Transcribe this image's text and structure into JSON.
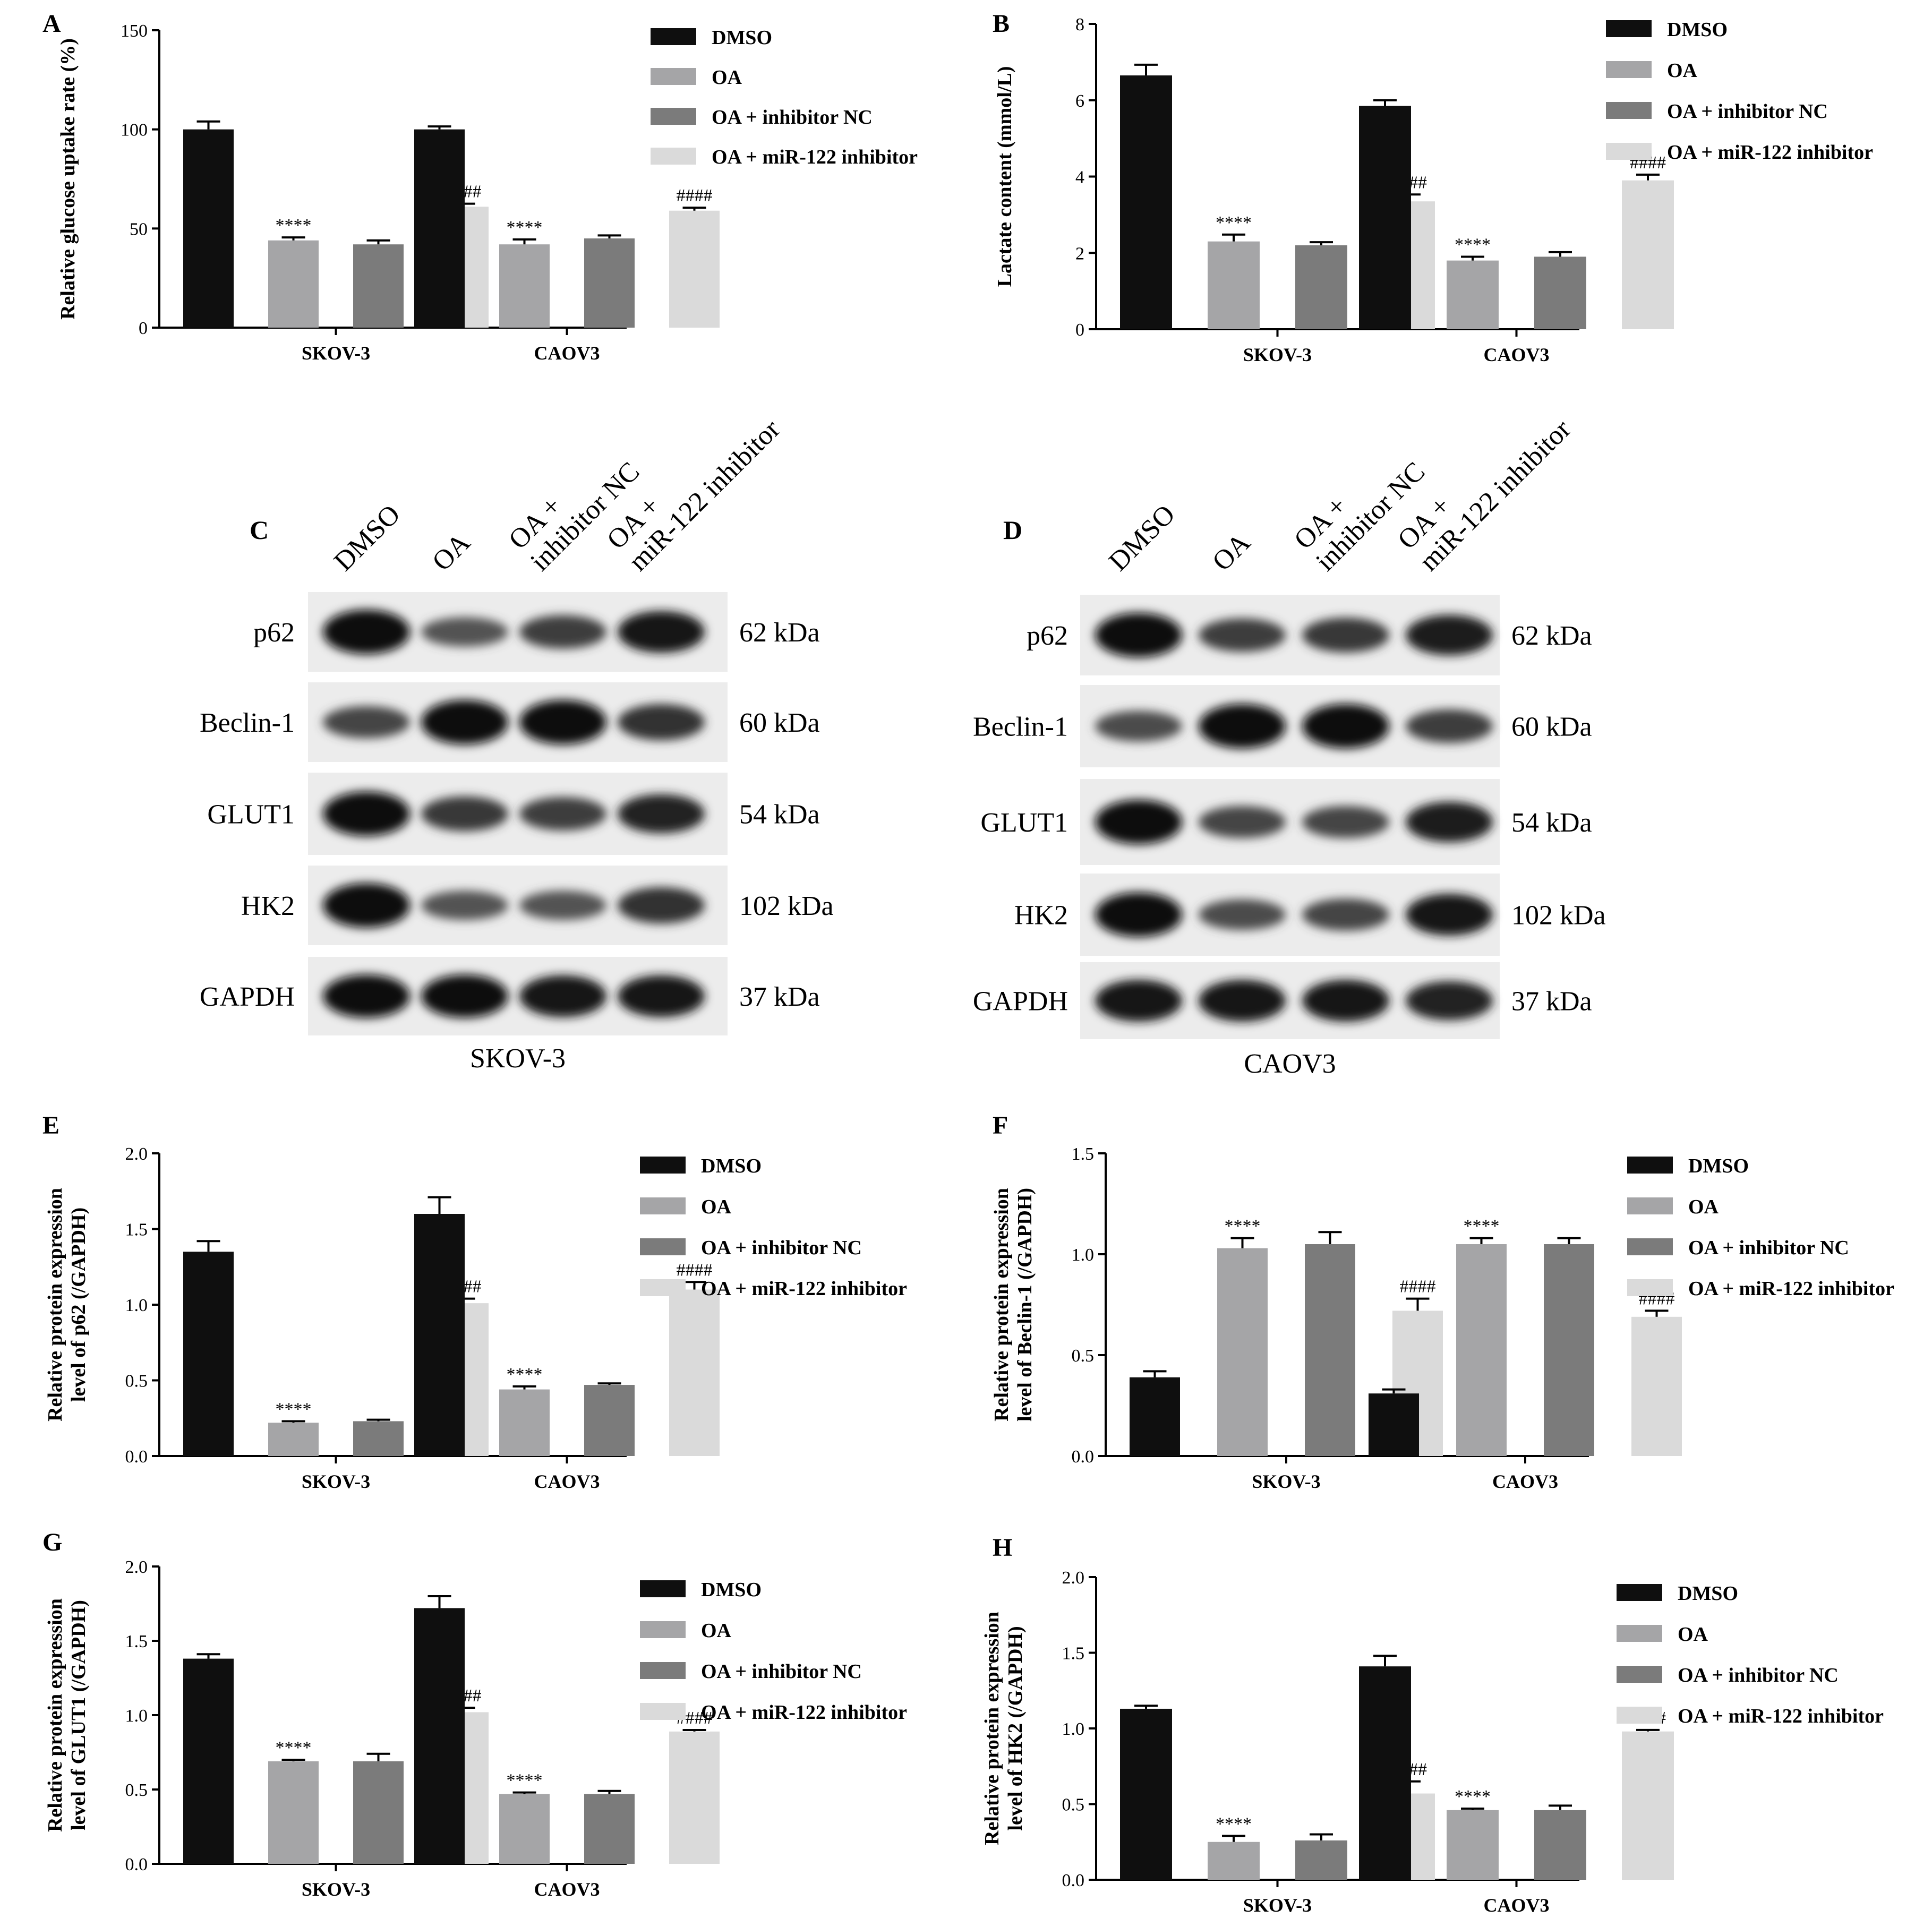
{
  "groups": [
    "DMSO",
    "OA",
    "OA + inhibitor NC",
    "OA + miR-122 inhibitor"
  ],
  "colors": [
    "#0f0f0f",
    "#a5a5a7",
    "#7b7b7b",
    "#dadada"
  ],
  "chart_data": [
    {
      "type": "bar",
      "panel": "A",
      "categories": [
        "SKOV-3",
        "CAOV3"
      ],
      "ylabel": "Relative glucose uptake rate (%)",
      "ylim": [
        0,
        150
      ],
      "yticks": [
        "0",
        "50",
        "100",
        "150"
      ],
      "series": [
        {
          "name": "DMSO",
          "values": [
            100,
            100
          ],
          "errors": [
            4,
            1.5
          ]
        },
        {
          "name": "OA",
          "values": [
            44,
            42
          ],
          "errors": [
            1.5,
            2.5
          ]
        },
        {
          "name": "OA + inhibitor NC",
          "values": [
            42,
            45
          ],
          "errors": [
            2,
            1.5
          ]
        },
        {
          "name": "OA + miR-122 inhibitor",
          "values": [
            61,
            59
          ],
          "errors": [
            1.5,
            1.5
          ]
        }
      ],
      "annotations": [
        {
          "series": 1,
          "category": 0,
          "text": "****"
        },
        {
          "series": 3,
          "category": 0,
          "text": "####"
        },
        {
          "series": 1,
          "category": 1,
          "text": "****"
        },
        {
          "series": 3,
          "category": 1,
          "text": "####"
        }
      ]
    },
    {
      "type": "bar",
      "panel": "B",
      "categories": [
        "SKOV-3",
        "CAOV3"
      ],
      "ylabel": "Lactate content (mmol/L)",
      "ylim": [
        0,
        8
      ],
      "yticks": [
        "0",
        "2",
        "4",
        "6",
        "8"
      ],
      "series": [
        {
          "name": "DMSO",
          "values": [
            6.65,
            5.85
          ],
          "errors": [
            0.28,
            0.15
          ]
        },
        {
          "name": "OA",
          "values": [
            2.3,
            1.8
          ],
          "errors": [
            0.18,
            0.1
          ]
        },
        {
          "name": "OA + inhibitor NC",
          "values": [
            2.2,
            1.9
          ],
          "errors": [
            0.08,
            0.12
          ]
        },
        {
          "name": "OA + miR-122 inhibitor",
          "values": [
            3.35,
            3.9
          ],
          "errors": [
            0.18,
            0.15
          ]
        }
      ],
      "annotations": [
        {
          "series": 1,
          "category": 0,
          "text": "****"
        },
        {
          "series": 3,
          "category": 0,
          "text": "####"
        },
        {
          "series": 1,
          "category": 1,
          "text": "****"
        },
        {
          "series": 3,
          "category": 1,
          "text": "####"
        }
      ]
    },
    {
      "type": "bar",
      "panel": "E",
      "categories": [
        "SKOV-3",
        "CAOV3"
      ],
      "ylabel": [
        "Relative protein expression",
        "level of p62 (/GAPDH)"
      ],
      "ylim": [
        0,
        2
      ],
      "yticks": [
        "0.0",
        "0.5",
        "1.0",
        "1.5",
        "2.0"
      ],
      "series": [
        {
          "name": "DMSO",
          "values": [
            1.35,
            1.6
          ],
          "errors": [
            0.07,
            0.11
          ]
        },
        {
          "name": "OA",
          "values": [
            0.22,
            0.44
          ],
          "errors": [
            0.01,
            0.02
          ]
        },
        {
          "name": "OA + inhibitor NC",
          "values": [
            0.23,
            0.47
          ],
          "errors": [
            0.01,
            0.01
          ]
        },
        {
          "name": "OA + miR-122 inhibitor",
          "values": [
            1.01,
            1.1
          ],
          "errors": [
            0.03,
            0.05
          ]
        }
      ],
      "annotations": [
        {
          "series": 1,
          "category": 0,
          "text": "****"
        },
        {
          "series": 3,
          "category": 0,
          "text": "####"
        },
        {
          "series": 1,
          "category": 1,
          "text": "****"
        },
        {
          "series": 3,
          "category": 1,
          "text": "####"
        }
      ]
    },
    {
      "type": "bar",
      "panel": "F",
      "categories": [
        "SKOV-3",
        "CAOV3"
      ],
      "ylabel": [
        "Relative protein expression",
        "level of Beclin-1 (/GAPDH)"
      ],
      "ylim": [
        0,
        1.5
      ],
      "yticks": [
        "0.0",
        "0.5",
        "1.0",
        "1.5"
      ],
      "series": [
        {
          "name": "DMSO",
          "values": [
            0.39,
            0.31
          ],
          "errors": [
            0.03,
            0.02
          ]
        },
        {
          "name": "OA",
          "values": [
            1.03,
            1.05
          ],
          "errors": [
            0.05,
            0.03
          ]
        },
        {
          "name": "OA + inhibitor NC",
          "values": [
            1.05,
            1.05
          ],
          "errors": [
            0.06,
            0.03
          ]
        },
        {
          "name": "OA + miR-122 inhibitor",
          "values": [
            0.72,
            0.69
          ],
          "errors": [
            0.06,
            0.03
          ]
        }
      ],
      "annotations": [
        {
          "series": 1,
          "category": 0,
          "text": "****"
        },
        {
          "series": 3,
          "category": 0,
          "text": "####"
        },
        {
          "series": 1,
          "category": 1,
          "text": "****"
        },
        {
          "series": 3,
          "category": 1,
          "text": "####"
        }
      ]
    },
    {
      "type": "bar",
      "panel": "G",
      "categories": [
        "SKOV-3",
        "CAOV3"
      ],
      "ylabel": [
        "Relative protein expression",
        "level of GLUT1 (/GAPDH)"
      ],
      "ylim": [
        0,
        2
      ],
      "yticks": [
        "0.0",
        "0.5",
        "1.0",
        "1.5",
        "2.0"
      ],
      "series": [
        {
          "name": "DMSO",
          "values": [
            1.38,
            1.72
          ],
          "errors": [
            0.03,
            0.08
          ]
        },
        {
          "name": "OA",
          "values": [
            0.69,
            0.47
          ],
          "errors": [
            0.01,
            0.01
          ]
        },
        {
          "name": "OA + inhibitor NC",
          "values": [
            0.69,
            0.47
          ],
          "errors": [
            0.05,
            0.02
          ]
        },
        {
          "name": "OA + miR-122 inhibitor",
          "values": [
            1.02,
            0.89
          ],
          "errors": [
            0.03,
            0.01
          ]
        }
      ],
      "annotations": [
        {
          "series": 1,
          "category": 0,
          "text": "****"
        },
        {
          "series": 3,
          "category": 0,
          "text": "####"
        },
        {
          "series": 1,
          "category": 1,
          "text": "****"
        },
        {
          "series": 3,
          "category": 1,
          "text": "####"
        }
      ]
    },
    {
      "type": "bar",
      "panel": "H",
      "categories": [
        "SKOV-3",
        "CAOV3"
      ],
      "ylabel": [
        "Relative protein expression",
        "level of HK2 (/GAPDH)"
      ],
      "ylim": [
        0,
        2
      ],
      "yticks": [
        "0.0",
        "0.5",
        "1.0",
        "1.5",
        "2.0"
      ],
      "series": [
        {
          "name": "DMSO",
          "values": [
            1.13,
            1.41
          ],
          "errors": [
            0.02,
            0.07
          ]
        },
        {
          "name": "OA",
          "values": [
            0.25,
            0.46
          ],
          "errors": [
            0.04,
            0.01
          ]
        },
        {
          "name": "OA + inhibitor NC",
          "values": [
            0.26,
            0.46
          ],
          "errors": [
            0.04,
            0.03
          ]
        },
        {
          "name": "OA + miR-122 inhibitor",
          "values": [
            0.57,
            0.98
          ],
          "errors": [
            0.08,
            0.01
          ]
        }
      ],
      "annotations": [
        {
          "series": 1,
          "category": 0,
          "text": "****"
        },
        {
          "series": 3,
          "category": 0,
          "text": "####"
        },
        {
          "series": 1,
          "category": 1,
          "text": "****"
        },
        {
          "series": 3,
          "category": 1,
          "text": "####"
        }
      ]
    }
  ],
  "blots": [
    {
      "panel": "C",
      "cell_line": "SKOV-3",
      "lanes": [
        "DMSO",
        "OA",
        [
          "OA +",
          "inhibitor NC"
        ],
        [
          "OA +",
          "miR-122 inhibitor"
        ]
      ],
      "rows": [
        {
          "protein": "p62",
          "size": "62 kDa",
          "intensity": [
            1.0,
            0.45,
            0.6,
            0.9
          ]
        },
        {
          "protein": "Beclin-1",
          "size": "60 kDa",
          "intensity": [
            0.55,
            1.0,
            1.0,
            0.7
          ]
        },
        {
          "protein": "GLUT1",
          "size": "54 kDa",
          "intensity": [
            1.0,
            0.65,
            0.6,
            0.8
          ]
        },
        {
          "protein": "HK2",
          "size": "102 kDa",
          "intensity": [
            1.0,
            0.45,
            0.45,
            0.7
          ]
        },
        {
          "protein": "GAPDH",
          "size": "37 kDa",
          "intensity": [
            0.95,
            0.95,
            0.9,
            0.9
          ]
        }
      ]
    },
    {
      "panel": "D",
      "cell_line": "CAOV3",
      "lanes": [
        "DMSO",
        "OA",
        [
          "OA +",
          "inhibitor NC"
        ],
        [
          "OA +",
          "miR-122 inhibitor"
        ]
      ],
      "rows": [
        {
          "protein": "p62",
          "size": "62 kDa",
          "intensity": [
            1.0,
            0.6,
            0.65,
            0.85
          ]
        },
        {
          "protein": "Beclin-1",
          "size": "60 kDa",
          "intensity": [
            0.5,
            1.0,
            1.0,
            0.6
          ]
        },
        {
          "protein": "GLUT1",
          "size": "54 kDa",
          "intensity": [
            1.0,
            0.55,
            0.55,
            0.85
          ]
        },
        {
          "protein": "HK2",
          "size": "102 kDa",
          "intensity": [
            1.0,
            0.5,
            0.55,
            0.9
          ]
        },
        {
          "protein": "GAPDH",
          "size": "37 kDa",
          "intensity": [
            0.9,
            0.9,
            0.9,
            0.8
          ]
        }
      ]
    }
  ]
}
